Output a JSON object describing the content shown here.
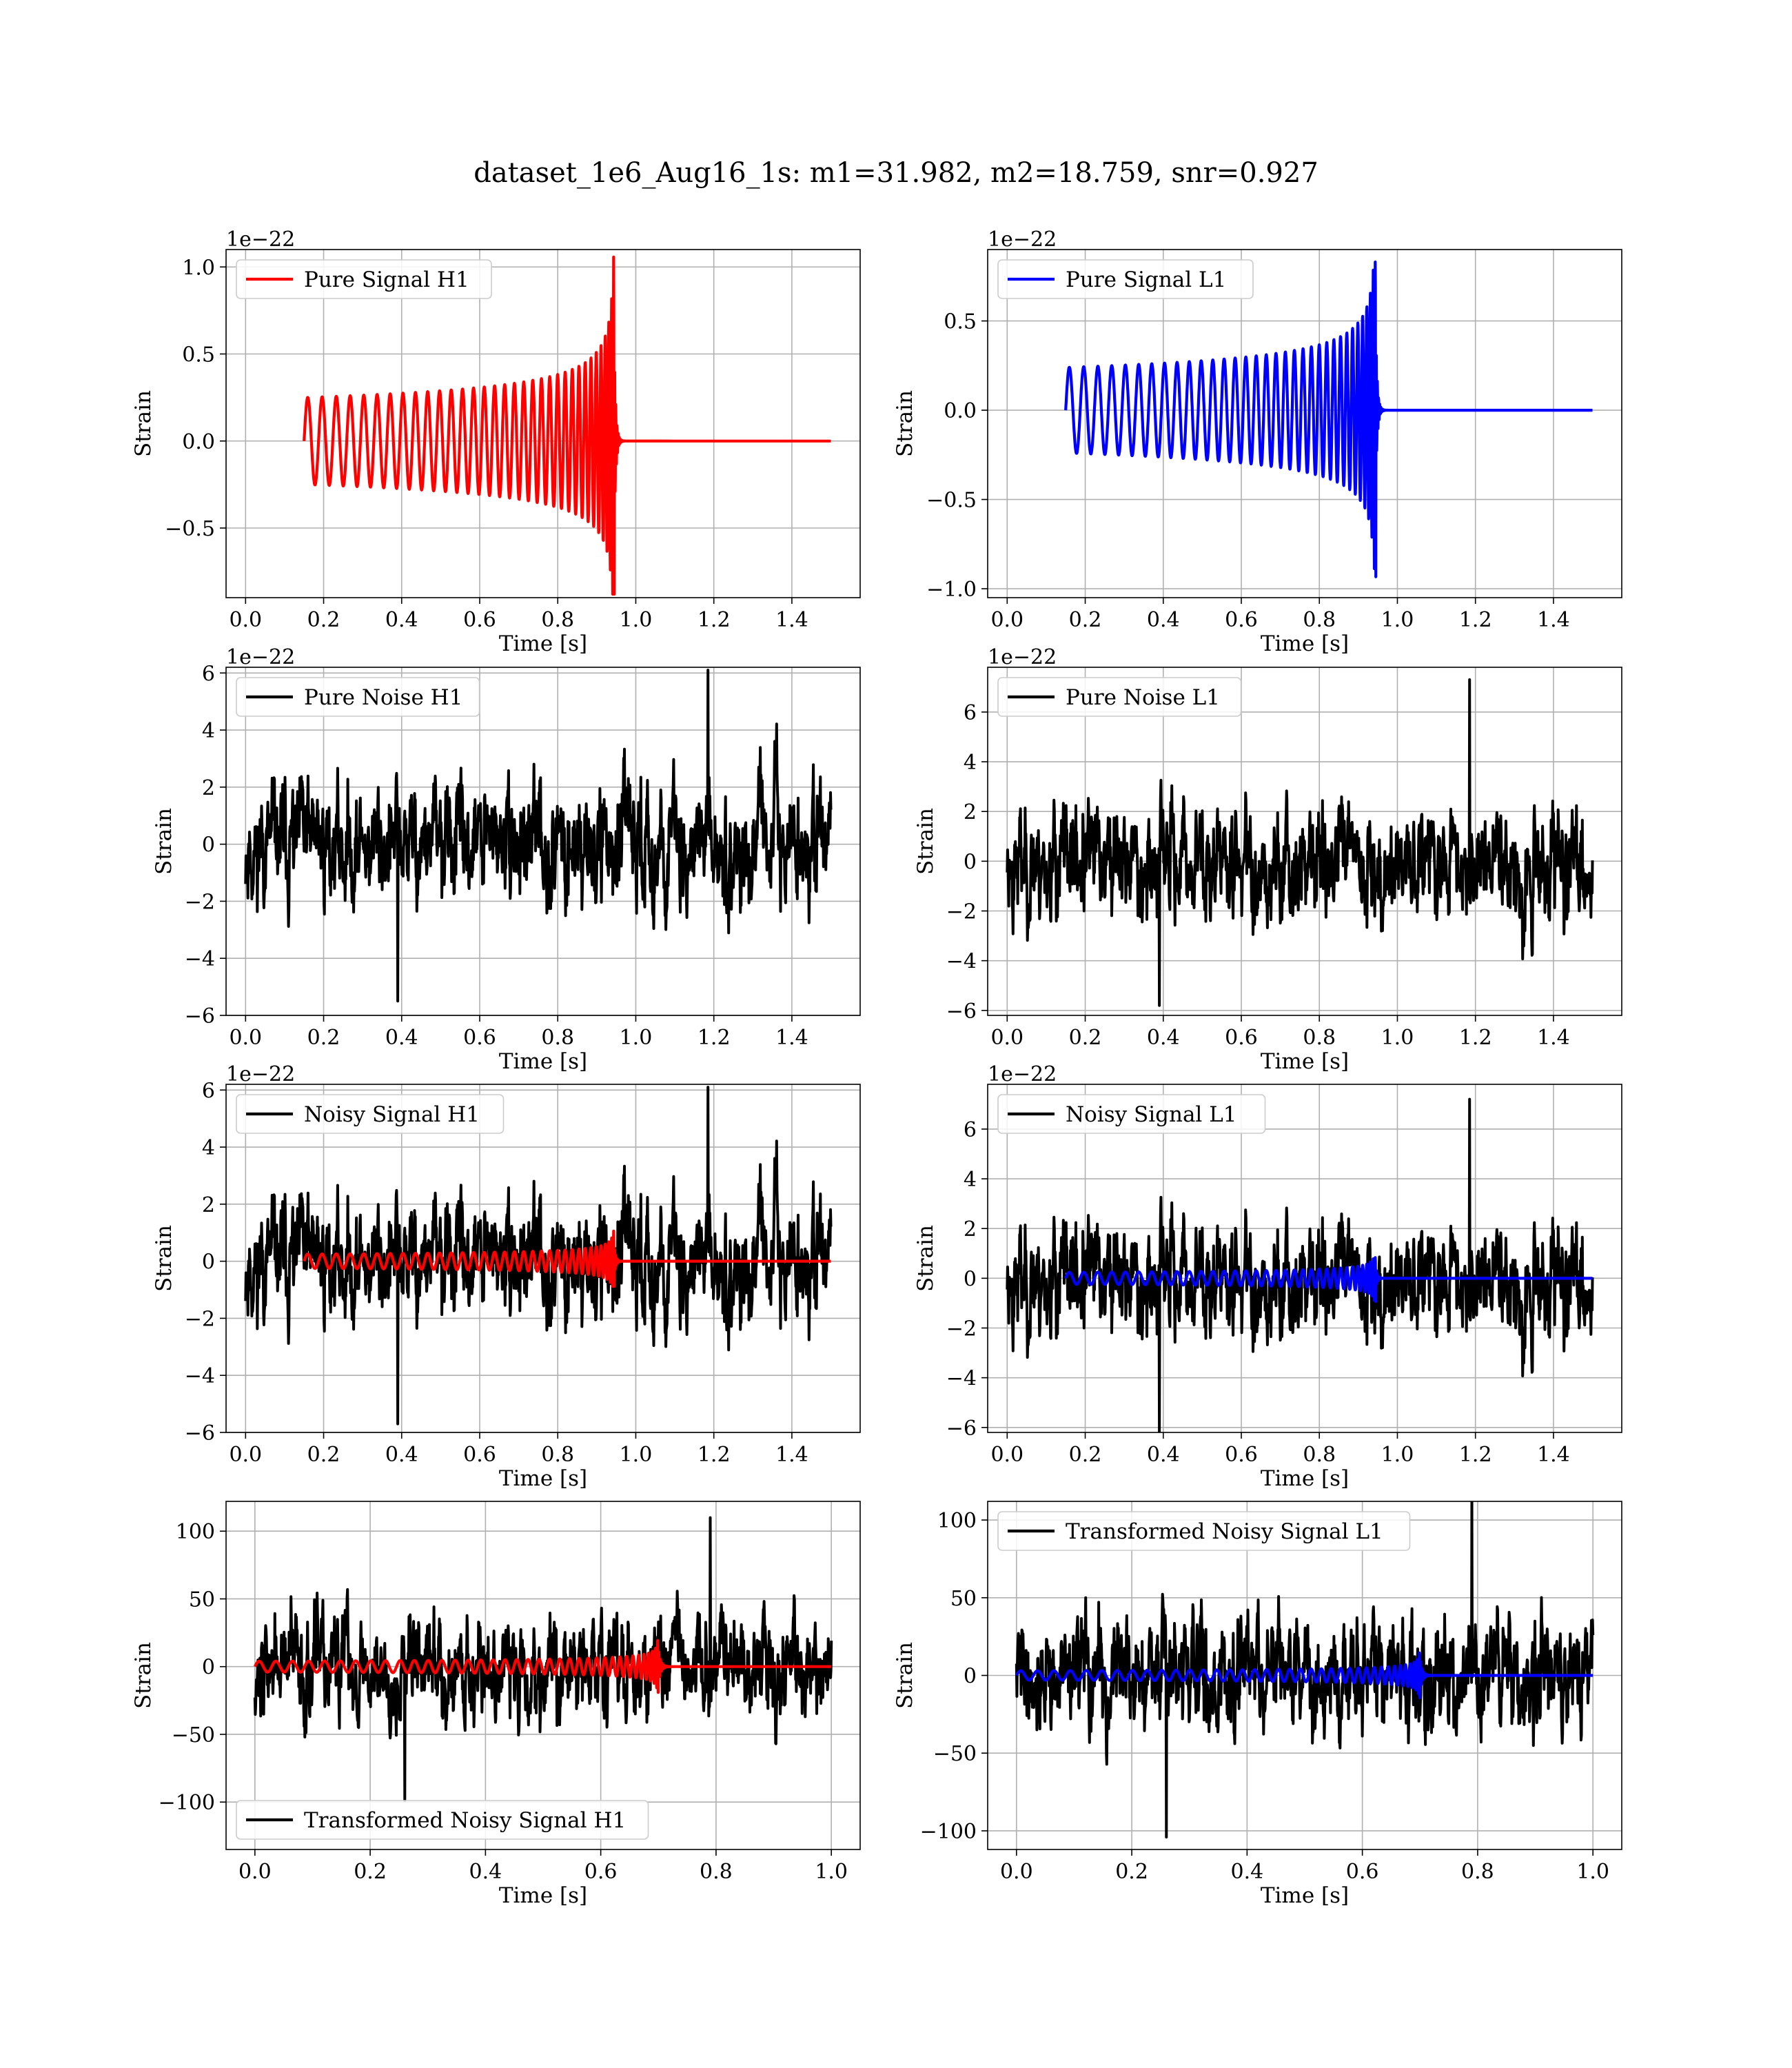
{
  "figure_title": "dataset_1e6_Aug16_1s: m1=31.982, m2=18.759, snr=0.927",
  "colors": {
    "h1": "#ff0000",
    "l1": "#0000ff",
    "noise": "#000000",
    "grid": "#b0b0b0"
  },
  "chart_data": [
    {
      "id": "pure-signal-h1",
      "type": "line",
      "xlabel": "Time [s]",
      "ylabel": "Strain",
      "offset_label": "1e−22",
      "xlim": [
        -0.05,
        1.575
      ],
      "ylim": [
        -0.9,
        1.1
      ],
      "xticks": [
        0.0,
        0.2,
        0.4,
        0.6,
        0.8,
        1.0,
        1.2,
        1.4
      ],
      "xtick_labels": [
        "0.0",
        "0.2",
        "0.4",
        "0.6",
        "0.8",
        "1.0",
        "1.2",
        "1.4"
      ],
      "yticks": [
        -0.5,
        0.0,
        0.5,
        1.0
      ],
      "ytick_labels": [
        "−0.5",
        "0.0",
        "0.5",
        "1.0"
      ],
      "legend": {
        "placement": "upper left"
      },
      "series": [
        {
          "name": "Pure Signal H1",
          "kind": "chirp",
          "color": "#ff0000",
          "t_start": 0.15,
          "t_merge": 0.945,
          "t_end": 1.5,
          "amp_start": 0.25,
          "amp_peak": 1.07,
          "amp_min": -0.88,
          "cycles": 34,
          "legend": true
        }
      ]
    },
    {
      "id": "pure-signal-l1",
      "type": "line",
      "xlabel": "Time [s]",
      "ylabel": "Strain",
      "offset_label": "1e−22",
      "xlim": [
        -0.05,
        1.575
      ],
      "ylim": [
        -1.05,
        0.9
      ],
      "xticks": [
        0.0,
        0.2,
        0.4,
        0.6,
        0.8,
        1.0,
        1.2,
        1.4
      ],
      "xtick_labels": [
        "0.0",
        "0.2",
        "0.4",
        "0.6",
        "0.8",
        "1.0",
        "1.2",
        "1.4"
      ],
      "yticks": [
        -1.0,
        -0.5,
        0.0,
        0.5
      ],
      "ytick_labels": [
        "−1.0",
        "−0.5",
        "0.0",
        "0.5"
      ],
      "legend": {
        "placement": "upper left"
      },
      "series": [
        {
          "name": "Pure Signal L1",
          "kind": "chirp",
          "color": "#0000ff",
          "t_start": 0.15,
          "t_merge": 0.945,
          "t_end": 1.5,
          "amp_start": 0.24,
          "amp_peak": 0.83,
          "amp_min": -1.02,
          "cycles": 34,
          "legend": true
        }
      ]
    },
    {
      "id": "pure-noise-h1",
      "type": "line",
      "xlabel": "Time [s]",
      "ylabel": "Strain",
      "offset_label": "1e−22",
      "xlim": [
        -0.05,
        1.575
      ],
      "ylim": [
        -6.0,
        6.2
      ],
      "xticks": [
        0.0,
        0.2,
        0.4,
        0.6,
        0.8,
        1.0,
        1.2,
        1.4
      ],
      "xtick_labels": [
        "0.0",
        "0.2",
        "0.4",
        "0.6",
        "0.8",
        "1.0",
        "1.2",
        "1.4"
      ],
      "yticks": [
        -6,
        -4,
        -2,
        0,
        2,
        4,
        6
      ],
      "ytick_labels": [
        "−6",
        "−4",
        "−2",
        "0",
        "2",
        "4",
        "6"
      ],
      "legend": {
        "placement": "upper left"
      },
      "series": [
        {
          "name": "Pure Noise H1",
          "kind": "noise",
          "color": "#000000",
          "t_start": 0.0,
          "t_end": 1.5,
          "amp": 1.6,
          "max": 6.1,
          "min": -5.5,
          "seed": 11,
          "legend": true
        }
      ]
    },
    {
      "id": "pure-noise-l1",
      "type": "line",
      "xlabel": "Time [s]",
      "ylabel": "Strain",
      "offset_label": "1e−22",
      "xlim": [
        -0.05,
        1.575
      ],
      "ylim": [
        -6.2,
        7.8
      ],
      "xticks": [
        0.0,
        0.2,
        0.4,
        0.6,
        0.8,
        1.0,
        1.2,
        1.4
      ],
      "xtick_labels": [
        "0.0",
        "0.2",
        "0.4",
        "0.6",
        "0.8",
        "1.0",
        "1.2",
        "1.4"
      ],
      "yticks": [
        -6,
        -4,
        -2,
        0,
        2,
        4,
        6
      ],
      "ytick_labels": [
        "−6",
        "−4",
        "−2",
        "0",
        "2",
        "4",
        "6"
      ],
      "legend": {
        "placement": "upper left"
      },
      "series": [
        {
          "name": "Pure Noise L1",
          "kind": "noise",
          "color": "#000000",
          "t_start": 0.0,
          "t_end": 1.5,
          "amp": 1.8,
          "max": 7.3,
          "min": -5.8,
          "seed": 23,
          "legend": true
        }
      ]
    },
    {
      "id": "noisy-signal-h1",
      "type": "line",
      "xlabel": "Time [s]",
      "ylabel": "Strain",
      "offset_label": "1e−22",
      "xlim": [
        -0.05,
        1.575
      ],
      "ylim": [
        -6.0,
        6.2
      ],
      "xticks": [
        0.0,
        0.2,
        0.4,
        0.6,
        0.8,
        1.0,
        1.2,
        1.4
      ],
      "xtick_labels": [
        "0.0",
        "0.2",
        "0.4",
        "0.6",
        "0.8",
        "1.0",
        "1.2",
        "1.4"
      ],
      "yticks": [
        -6,
        -4,
        -2,
        0,
        2,
        4,
        6
      ],
      "ytick_labels": [
        "−6",
        "−4",
        "−2",
        "0",
        "2",
        "4",
        "6"
      ],
      "legend": {
        "placement": "upper left"
      },
      "series": [
        {
          "name": "Noisy Signal H1",
          "kind": "noise",
          "color": "#000000",
          "t_start": 0.0,
          "t_end": 1.5,
          "amp": 1.6,
          "max": 6.1,
          "min": -5.7,
          "seed": 11,
          "legend": true
        },
        {
          "kind": "chirp",
          "color": "#ff0000",
          "t_start": 0.15,
          "t_merge": 0.945,
          "t_end": 1.5,
          "amp_start": 0.25,
          "amp_peak": 1.07,
          "amp_min": -0.88,
          "cycles": 34,
          "legend": false
        }
      ]
    },
    {
      "id": "noisy-signal-l1",
      "type": "line",
      "xlabel": "Time [s]",
      "ylabel": "Strain",
      "offset_label": "1e−22",
      "xlim": [
        -0.05,
        1.575
      ],
      "ylim": [
        -6.2,
        7.8
      ],
      "xticks": [
        0.0,
        0.2,
        0.4,
        0.6,
        0.8,
        1.0,
        1.2,
        1.4
      ],
      "xtick_labels": [
        "0.0",
        "0.2",
        "0.4",
        "0.6",
        "0.8",
        "1.0",
        "1.2",
        "1.4"
      ],
      "yticks": [
        -6,
        -4,
        -2,
        0,
        2,
        4,
        6
      ],
      "ytick_labels": [
        "−6",
        "−4",
        "−2",
        "0",
        "2",
        "4",
        "6"
      ],
      "legend": {
        "placement": "upper left"
      },
      "series": [
        {
          "name": "Noisy Signal L1",
          "kind": "noise",
          "color": "#000000",
          "t_start": 0.0,
          "t_end": 1.5,
          "amp": 1.8,
          "max": 7.2,
          "min": -6.2,
          "seed": 23,
          "legend": true
        },
        {
          "kind": "chirp",
          "color": "#0000ff",
          "t_start": 0.15,
          "t_merge": 0.945,
          "t_end": 1.5,
          "amp_start": 0.24,
          "amp_peak": 0.83,
          "amp_min": -1.02,
          "cycles": 34,
          "legend": false
        }
      ]
    },
    {
      "id": "transformed-noisy-signal-h1",
      "type": "line",
      "xlabel": "Time [s]",
      "ylabel": "Strain",
      "offset_label": "",
      "xlim": [
        -0.05,
        1.05
      ],
      "ylim": [
        -135,
        122
      ],
      "xticks": [
        0.0,
        0.2,
        0.4,
        0.6,
        0.8,
        1.0
      ],
      "xtick_labels": [
        "0.0",
        "0.2",
        "0.4",
        "0.6",
        "0.8",
        "1.0"
      ],
      "yticks": [
        -100,
        -50,
        0,
        50,
        100
      ],
      "ytick_labels": [
        "−100",
        "−50",
        "0",
        "50",
        "100"
      ],
      "legend": {
        "placement": "lower left"
      },
      "series": [
        {
          "name": "Transformed Noisy Signal H1",
          "kind": "noise",
          "color": "#000000",
          "t_start": 0.0,
          "t_end": 1.0,
          "amp": 30,
          "max": 110,
          "min": -99,
          "seed": 37,
          "legend": true
        },
        {
          "kind": "chirp",
          "color": "#ff0000",
          "t_start": 0.0,
          "t_merge": 0.7,
          "t_end": 1.0,
          "amp_start": 4,
          "amp_peak": 27,
          "amp_min": -25,
          "cycles": 38,
          "legend": false
        }
      ]
    },
    {
      "id": "transformed-noisy-signal-l1",
      "type": "line",
      "xlabel": "Time [s]",
      "ylabel": "Strain",
      "offset_label": "",
      "xlim": [
        -0.05,
        1.05
      ],
      "ylim": [
        -112,
        112
      ],
      "xticks": [
        0.0,
        0.2,
        0.4,
        0.6,
        0.8,
        1.0
      ],
      "xtick_labels": [
        "0.0",
        "0.2",
        "0.4",
        "0.6",
        "0.8",
        "1.0"
      ],
      "yticks": [
        -100,
        -50,
        0,
        50,
        100
      ],
      "ytick_labels": [
        "−100",
        "−50",
        "0",
        "50",
        "100"
      ],
      "legend": {
        "placement": "upper left"
      },
      "series": [
        {
          "name": "Transformed Noisy Signal L1",
          "kind": "noise",
          "color": "#000000",
          "t_start": 0.0,
          "t_end": 1.0,
          "amp": 28,
          "max": 120,
          "min": -104,
          "seed": 41,
          "legend": true
        },
        {
          "kind": "chirp",
          "color": "#0000ff",
          "t_start": 0.0,
          "t_merge": 0.7,
          "t_end": 1.0,
          "amp_start": 3,
          "amp_peak": 22,
          "amp_min": -22,
          "cycles": 38,
          "legend": false
        }
      ]
    }
  ]
}
